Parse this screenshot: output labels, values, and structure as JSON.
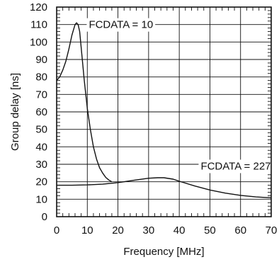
{
  "chart_data": {
    "type": "line",
    "title": "",
    "xlabel": "Frequency [MHz]",
    "ylabel": "Group delay [ns]",
    "xlim": [
      0,
      70
    ],
    "ylim": [
      0,
      120
    ],
    "x_ticks": [
      0,
      10,
      20,
      30,
      40,
      50,
      60,
      70
    ],
    "y_ticks": [
      0,
      10,
      20,
      30,
      40,
      50,
      60,
      70,
      80,
      90,
      100,
      110,
      120
    ],
    "grid": true,
    "series": [
      {
        "name": "FCDATA = 10",
        "x": [
          0,
          1,
          2,
          3,
          4,
          5,
          6,
          6.5,
          7,
          7.5,
          8,
          9,
          10,
          11,
          12,
          13,
          14,
          15,
          16,
          17,
          18
        ],
        "y": [
          78,
          80,
          84,
          89,
          96,
          104,
          110,
          111,
          110,
          106,
          97,
          78,
          62,
          50,
          40,
          33,
          28,
          25,
          22.5,
          21,
          20
        ]
      },
      {
        "name": "FCDATA = 227",
        "x": [
          0,
          5,
          10,
          15,
          20,
          25,
          30,
          33,
          35,
          38,
          40,
          45,
          50,
          55,
          60,
          65,
          70
        ],
        "y": [
          18,
          18,
          18.2,
          18.6,
          19.5,
          20.8,
          22,
          22.3,
          22.3,
          21.5,
          20.3,
          17.6,
          15.3,
          13.5,
          12.2,
          11.3,
          10.8
        ]
      }
    ],
    "annotations": [
      {
        "text": "FCDATA = 10",
        "x": 10.5,
        "y": 110
      },
      {
        "text": "FCDATA = 227",
        "x": 47,
        "y": 29
      }
    ]
  }
}
